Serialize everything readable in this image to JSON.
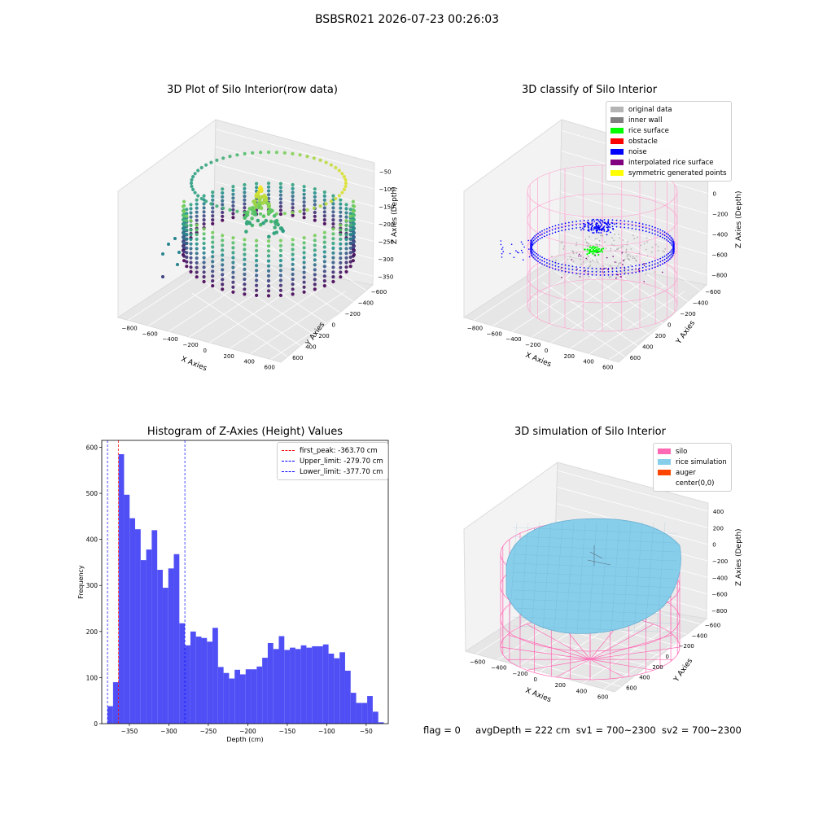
{
  "suptitle": "BSBSR021 2026-07-23 00:26:03",
  "status_line": {
    "flag": "flag = 0",
    "avg_depth": "avgDepth = 222 cm",
    "sv1": "sv1 = 700~2300",
    "sv2": "sv2 = 700~2300"
  },
  "chart_data": [
    {
      "type": "scatter3d",
      "title": "3D Plot of Silo Interior(row data)",
      "xlabel": "X Axies",
      "ylabel": "Y Axies",
      "zlabel": "Z Axies (Depth)",
      "x_ticks": [
        "−800",
        "−600",
        "−400",
        "−200",
        "0",
        "200",
        "400",
        "600"
      ],
      "y_ticks": [
        "600",
        "400",
        "200",
        "0",
        "−200",
        "−400",
        "−600"
      ],
      "z_ticks": [
        "−50",
        "−100",
        "−150",
        "−200",
        "−250",
        "−300",
        "−350"
      ],
      "colormap": "viridis"
    },
    {
      "type": "scatter3d",
      "title": "3D classify of Silo Interior",
      "xlabel": "X Axies",
      "ylabel": "Y Axies",
      "zlabel": "Z Axies (Depth)",
      "x_ticks": [
        "−800",
        "−600",
        "−400",
        "−200",
        "0",
        "200",
        "400",
        "600"
      ],
      "y_ticks": [
        "600",
        "400",
        "200",
        "0",
        "−200",
        "−400",
        "−600"
      ],
      "z_ticks": [
        "200",
        "0",
        "−200",
        "−400",
        "−600",
        "−800"
      ],
      "legend": [
        {
          "label": "original data",
          "color": "#b4b4b4"
        },
        {
          "label": "inner wall",
          "color": "#808080"
        },
        {
          "label": "rice surface",
          "color": "#00ff00"
        },
        {
          "label": "obstacle",
          "color": "#ff0000"
        },
        {
          "label": "noise",
          "color": "#0000ff"
        },
        {
          "label": "interpolated rice surface",
          "color": "#800080"
        },
        {
          "label": "symmetric generated points",
          "color": "#ffff00"
        }
      ]
    },
    {
      "type": "bar",
      "title": "Histogram of Z-Axies (Height) Values",
      "xlabel": "Depth (cm)",
      "ylabel": "Frequency",
      "xlim": [
        -385,
        -22
      ],
      "ylim": [
        0,
        615
      ],
      "x_ticks": [
        -350,
        -300,
        -250,
        -200,
        -150,
        -100,
        -50
      ],
      "y_ticks": [
        0,
        100,
        200,
        300,
        400,
        500,
        600
      ],
      "bin_start": -377.7,
      "bin_width": 7.0,
      "bar_color": "#4f4ff5",
      "values": [
        38,
        90,
        585,
        497,
        446,
        422,
        355,
        378,
        420,
        334,
        295,
        337,
        368,
        218,
        170,
        200,
        189,
        186,
        178,
        208,
        123,
        110,
        98,
        117,
        107,
        118,
        118,
        124,
        143,
        175,
        162,
        190,
        160,
        165,
        162,
        170,
        165,
        168,
        168,
        172,
        152,
        142,
        155,
        115,
        67,
        45,
        45,
        60,
        26,
        3
      ],
      "lines": [
        {
          "label": "first_peak: -363.70 cm",
          "x": -363.7,
          "color": "#ff0000"
        },
        {
          "label": "Upper_limit: -279.70 cm",
          "x": -279.7,
          "color": "#0000ff"
        },
        {
          "label": "Lower_limit: -377.70 cm",
          "x": -377.7,
          "color": "#0000ff"
        }
      ]
    },
    {
      "type": "surface3d",
      "title": "3D simulation of Silo Interior",
      "xlabel": "X Axies",
      "ylabel": "Y Axies",
      "zlabel": "Z Axies (Depth)",
      "x_ticks": [
        "−600",
        "−400",
        "−200",
        "0",
        "200",
        "400",
        "600"
      ],
      "y_ticks": [
        "600",
        "400",
        "200",
        "0",
        "−200",
        "−400",
        "−600"
      ],
      "z_ticks": [
        "400",
        "200",
        "0",
        "−200",
        "−400",
        "−600",
        "−800"
      ],
      "legend": [
        {
          "label": "silo",
          "color": "#ff69b4"
        },
        {
          "label": "rice simulation",
          "color": "#87ceeb"
        },
        {
          "label": "auger",
          "color": "#ff4500"
        },
        {
          "label": "center(0,0)",
          "color": "#ffffff"
        }
      ]
    }
  ]
}
